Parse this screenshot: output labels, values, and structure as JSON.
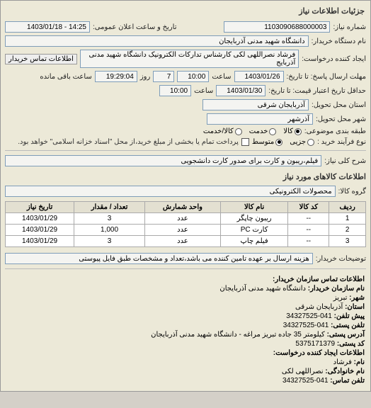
{
  "title": "جزئیات اطلاعات نیاز",
  "header": {
    "req_no_label": "شماره نیاز:",
    "req_no": "1103090688000003",
    "announce_label": "تاریخ و ساعت اعلان عمومی:",
    "announce_value": "14:25 - 1403/01/18"
  },
  "main": {
    "buyer_label": "نام دستگاه خریدار:",
    "buyer_value": "دانشگاه شهید مدنی آذربایجان",
    "requester_label": "ایجاد کننده درخواست:",
    "requester_value": "فرشاد نصراللهی لکی کارشناس تدارکات الکترونیک دانشگاه شهید مدنی آذربایج",
    "btn_buyer_contact": "اطلاعات تماس خریدار",
    "deadline_label": "مهلت ارسال پاسخ: تا تاریخ:",
    "deadline_date": "1403/01/26",
    "deadline_time_label": "ساعت",
    "deadline_time": "10:00",
    "days_label": "روز",
    "days_value": "7",
    "remain_label": "ساعت باقی مانده",
    "remain_value": "19:29:04",
    "validity_label": "حداقل تاریخ اعتبار قیمت: تا تاریخ:",
    "validity_date": "1403/01/30",
    "validity_time": "10:00",
    "province_label": "استان محل تحویل:",
    "province_value": "آذربایجان شرقی",
    "city_label": "شهر محل تحویل:",
    "city_value": "آذرشهر",
    "class_label": "طبقه بندی موضوعی:",
    "class_options": {
      "a": "کالا",
      "b": "خدمت",
      "c": "کالا/خدمت"
    },
    "class_selected": "a",
    "purchase_type_label": "نوع فرآیند خرید :",
    "purchase_options": {
      "a": "جزیی",
      "b": "متوسط"
    },
    "purchase_selected": "b",
    "purchase_note": "پرداخت تمام یا بخشی از مبلغ خرید،از محل \"اسناد خزانه اسلامی\" خواهد بود.",
    "desc_label": "شرح کلی نیاز:",
    "desc_value": "فیلم،ریبون و کارت برای صدور کارت دانشجویی"
  },
  "items": {
    "header": "اطلاعات کالاهای مورد نیاز",
    "group_label": "گروه کالا:",
    "group_value": "محصولات الکترونیکی",
    "columns": [
      "ردیف",
      "کد کالا",
      "نام کالا",
      "واحد شمارش",
      "تعداد / مقدار",
      "تاریخ نیاز"
    ],
    "rows": [
      [
        "1",
        "--",
        "ریبون چاپگر",
        "عدد",
        "3",
        "1403/01/29"
      ],
      [
        "2",
        "--",
        "کارت PC",
        "عدد",
        "1,000",
        "1403/01/29"
      ],
      [
        "3",
        "--",
        "فیلم چاپ",
        "عدد",
        "3",
        "1403/01/29"
      ]
    ]
  },
  "notes": {
    "buyer_notes_label": "توضیحات خریدار:",
    "buyer_notes_value": "هزینه ارسال بر عهده تامین کننده می باشد،تعداد و مشخصات طبق فایل پیوستی"
  },
  "contact": {
    "header": "اطلاعات تماس سازمان خریدار:",
    "org_label": "نام سازمان خریدار:",
    "org_value": "دانشگاه شهید مدنی آذربایجان",
    "city_label": "شهر:",
    "city_value": "تبریز",
    "province_label": "استان:",
    "province_value": "آذربایجان شرقی",
    "phone_prev_label": "پیش تلفن:",
    "phone_prev_value": "041-34327525",
    "phone_label": "تلفن پستی:",
    "phone_value": "041-34327525",
    "addr_label": "آدرس پستی:",
    "addr_value": "کیلومتر 35 جاده تبریز مراغه - دانشگاه شهید مدنی آذربایجان",
    "post_label": "کد پستی:",
    "post_value": "5375171379",
    "req_header": "اطلاعات ایجاد کننده درخواست:",
    "name_label": "نام:",
    "name_value": "فرشاد",
    "family_label": "نام خانوادگی:",
    "family_value": "نصراللهی لکی",
    "contact_phone_label": "تلفن تماس:",
    "contact_phone_value": "041-34327525"
  }
}
